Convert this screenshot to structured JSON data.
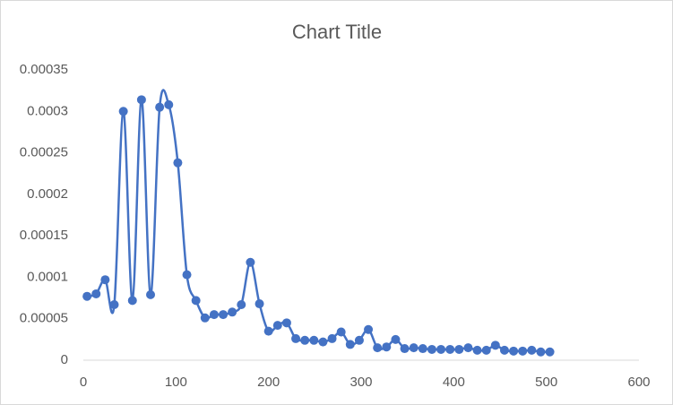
{
  "chart_data": {
    "type": "scatter",
    "title": "Chart Title",
    "line": "smooth",
    "color": "#4472c4",
    "x": [
      4,
      13.8,
      23.6,
      33.4,
      43.2,
      53,
      62.8,
      72.6,
      82.4,
      92.2,
      102,
      111.8,
      121.6,
      131.4,
      141.2,
      151,
      160.8,
      170.6,
      180.4,
      190.2,
      200,
      209.8,
      219.6,
      229.4,
      239.2,
      249,
      258.8,
      268.6,
      278.4,
      288.2,
      298,
      307.8,
      317.6,
      327.4,
      337.2,
      347,
      356.8,
      366.6,
      376.4,
      386.2,
      396,
      405.8,
      415.6,
      425.4,
      435.2,
      445,
      454.8,
      464.6,
      474.4,
      484.2,
      494,
      503.8
    ],
    "values": [
      7.7e-05,
      8e-05,
      9.7e-05,
      6.7e-05,
      0.0003,
      7.2e-05,
      0.000314,
      7.9e-05,
      0.000305,
      0.000308,
      0.000238,
      0.000103,
      7.2e-05,
      5.1e-05,
      5.5e-05,
      5.5e-05,
      5.8e-05,
      6.7e-05,
      0.000118,
      6.8e-05,
      3.5e-05,
      4.2e-05,
      4.5e-05,
      2.6e-05,
      2.4e-05,
      2.4e-05,
      2.2e-05,
      2.6e-05,
      3.4e-05,
      1.9e-05,
      2.4e-05,
      3.7e-05,
      1.5e-05,
      1.6e-05,
      2.5e-05,
      1.4e-05,
      1.5e-05,
      1.4e-05,
      1.3e-05,
      1.3e-05,
      1.3e-05,
      1.3e-05,
      1.5e-05,
      1.2e-05,
      1.2e-05,
      1.8e-05,
      1.2e-05,
      1.1e-05,
      1.1e-05,
      1.2e-05,
      1e-05,
      1e-05
    ],
    "xlim": [
      0,
      600
    ],
    "xticks": [
      0,
      100,
      200,
      300,
      400,
      500,
      600
    ],
    "ylim": [
      0,
      0.00035
    ],
    "yticks": [
      0,
      5e-05,
      0.0001,
      0.00015,
      0.0002,
      0.00025,
      0.0003,
      0.00035
    ],
    "grid": false
  }
}
